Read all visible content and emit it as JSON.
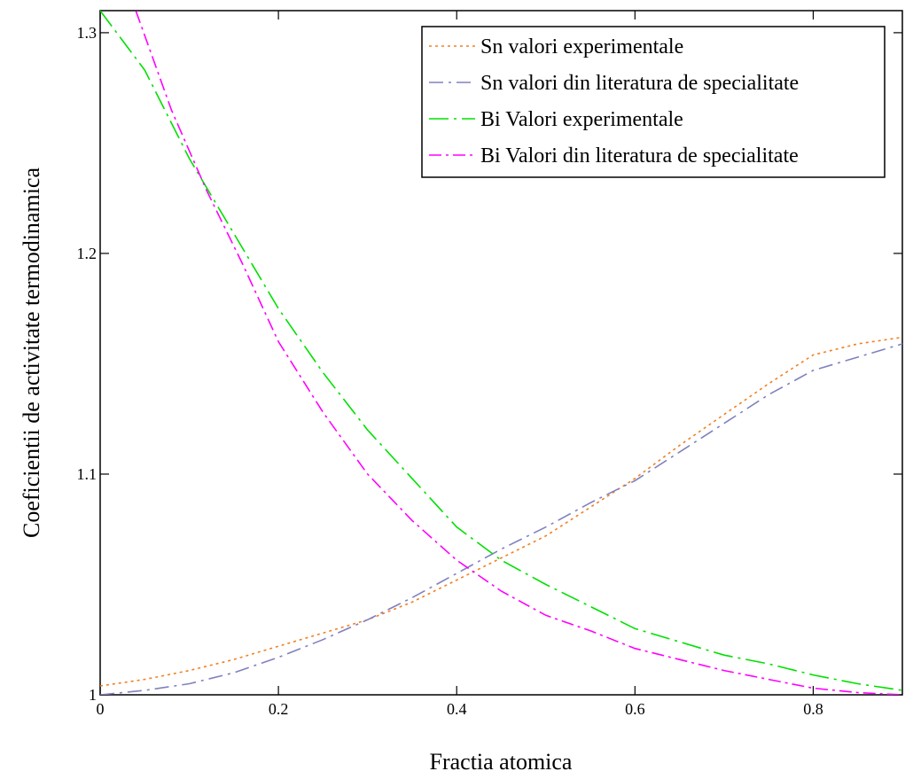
{
  "chart_data": {
    "type": "line",
    "xlabel": "Fractia atomica",
    "ylabel": "Coeficientii de activitate termodinamica",
    "xlim": [
      0,
      0.9
    ],
    "ylim": [
      1.0,
      1.31
    ],
    "x_ticks": [
      {
        "value": 0,
        "label": "0"
      },
      {
        "value": 0.2,
        "label": "0.2"
      },
      {
        "value": 0.4,
        "label": "0.4"
      },
      {
        "value": 0.6,
        "label": "0.6"
      },
      {
        "value": 0.8,
        "label": "0.8"
      }
    ],
    "y_ticks": [
      {
        "value": 1.0,
        "label": "1"
      },
      {
        "value": 1.1,
        "label": "1.1"
      },
      {
        "value": 1.2,
        "label": "1.2"
      },
      {
        "value": 1.3,
        "label": "1.3"
      }
    ],
    "grid": false,
    "legend_position": "top-right",
    "series": [
      {
        "name": "Sn valori experimentale",
        "color": "#f08020",
        "dash": "3,4",
        "x": [
          0,
          0.05,
          0.1,
          0.15,
          0.2,
          0.25,
          0.3,
          0.35,
          0.4,
          0.45,
          0.5,
          0.55,
          0.6,
          0.65,
          0.7,
          0.75,
          0.8,
          0.85,
          0.9
        ],
        "y": [
          1.004,
          1.007,
          1.011,
          1.016,
          1.022,
          1.028,
          1.034,
          1.042,
          1.052,
          1.062,
          1.072,
          1.085,
          1.098,
          1.113,
          1.127,
          1.141,
          1.154,
          1.159,
          1.162
        ]
      },
      {
        "name": "Sn valori din literatura de specialitate",
        "color": "#8080c0",
        "dash": "16,6,3,6",
        "x": [
          0,
          0.05,
          0.1,
          0.15,
          0.2,
          0.25,
          0.3,
          0.35,
          0.4,
          0.45,
          0.5,
          0.55,
          0.6,
          0.65,
          0.7,
          0.75,
          0.8,
          0.85,
          0.9
        ],
        "y": [
          1.0,
          1.002,
          1.005,
          1.01,
          1.017,
          1.025,
          1.034,
          1.044,
          1.055,
          1.066,
          1.076,
          1.087,
          1.097,
          1.11,
          1.123,
          1.136,
          1.147,
          1.153,
          1.159
        ]
      },
      {
        "name": "Bi Valori experimentale",
        "color": "#00e000",
        "dash": "22,6,3,6",
        "x": [
          0,
          0.05,
          0.1,
          0.15,
          0.2,
          0.25,
          0.3,
          0.35,
          0.4,
          0.45,
          0.5,
          0.55,
          0.6,
          0.65,
          0.7,
          0.75,
          0.8,
          0.85,
          0.9
        ],
        "y": [
          1.31,
          1.283,
          1.243,
          1.209,
          1.175,
          1.146,
          1.12,
          1.098,
          1.076,
          1.061,
          1.05,
          1.04,
          1.03,
          1.024,
          1.018,
          1.014,
          1.009,
          1.005,
          1.002
        ]
      },
      {
        "name": "Bi Valori din literatura de specialitate",
        "color": "#ff00ff",
        "dash": "14,5,3,5",
        "x": [
          0,
          0.04,
          0.08,
          0.12,
          0.16,
          0.2,
          0.25,
          0.3,
          0.35,
          0.4,
          0.45,
          0.5,
          0.55,
          0.6,
          0.65,
          0.7,
          0.75,
          0.8,
          0.85,
          0.9
        ],
        "y": [
          1.35,
          1.31,
          1.265,
          1.228,
          1.195,
          1.16,
          1.128,
          1.1,
          1.079,
          1.061,
          1.047,
          1.036,
          1.029,
          1.021,
          1.016,
          1.011,
          1.007,
          1.003,
          1.001,
          1.0
        ]
      }
    ]
  }
}
